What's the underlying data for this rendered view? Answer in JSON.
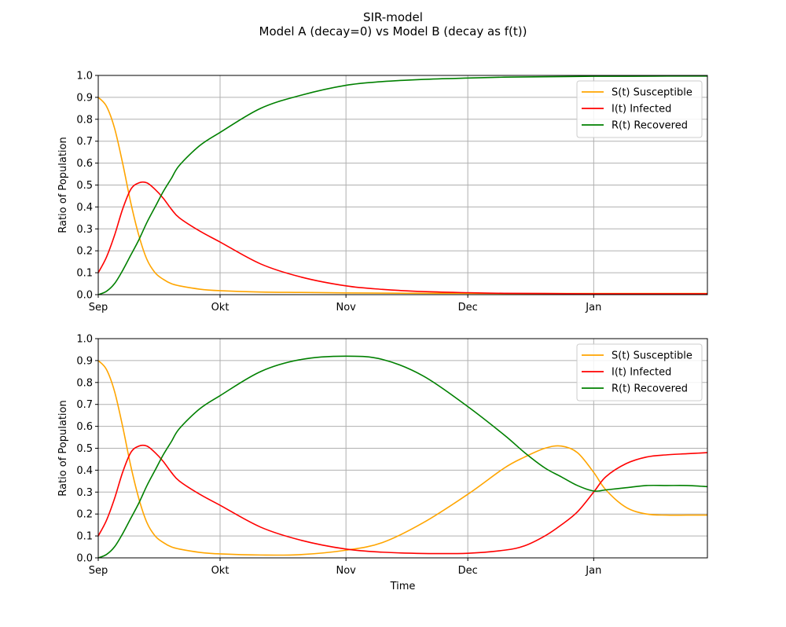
{
  "figure": {
    "title": "SIR-model",
    "subtitle": "Model A (decay=0) vs Model B (decay as f(t))"
  },
  "colors": {
    "susceptible": "#ffa500",
    "infected": "#ff0000",
    "recovered": "#008000",
    "grid": "#b0b0b0"
  },
  "chart_data": [
    {
      "type": "line",
      "title": "",
      "xlabel": "",
      "ylabel": "Ratio of Population",
      "x_unit": "days since Sep 1",
      "xlim": [
        0,
        150
      ],
      "ylim": [
        0,
        1.0
      ],
      "xticks": [
        {
          "label": "Sep",
          "value": 0
        },
        {
          "label": "Okt",
          "value": 30
        },
        {
          "label": "Nov",
          "value": 61
        },
        {
          "label": "Dec",
          "value": 91
        },
        {
          "label": "Jan",
          "value": 122
        }
      ],
      "yticks": [
        0.0,
        0.1,
        0.2,
        0.3,
        0.4,
        0.5,
        0.6,
        0.7,
        0.8,
        0.9,
        1.0
      ],
      "grid": true,
      "legend": "top-right",
      "series": [
        {
          "name": "S(t) Susceptible",
          "color": "#ffa500",
          "x": [
            0,
            2,
            4,
            6,
            8,
            10,
            12,
            14,
            16,
            18,
            20,
            25,
            30,
            40,
            50,
            61,
            70,
            80,
            91,
            100,
            110,
            122,
            130,
            140,
            150
          ],
          "y": [
            0.9,
            0.86,
            0.76,
            0.6,
            0.42,
            0.27,
            0.16,
            0.1,
            0.07,
            0.05,
            0.04,
            0.025,
            0.018,
            0.012,
            0.01,
            0.008,
            0.007,
            0.006,
            0.006,
            0.005,
            0.005,
            0.005,
            0.005,
            0.005,
            0.005
          ]
        },
        {
          "name": "I(t) Infected",
          "color": "#ff0000",
          "x": [
            0,
            2,
            4,
            6,
            8,
            10,
            12,
            14,
            16,
            18,
            20,
            25,
            30,
            40,
            50,
            61,
            70,
            80,
            91,
            100,
            110,
            122,
            130,
            140,
            150
          ],
          "y": [
            0.1,
            0.17,
            0.27,
            0.39,
            0.48,
            0.51,
            0.51,
            0.48,
            0.44,
            0.39,
            0.35,
            0.29,
            0.24,
            0.14,
            0.08,
            0.04,
            0.024,
            0.014,
            0.009,
            0.006,
            0.005,
            0.004,
            0.004,
            0.004,
            0.004
          ]
        },
        {
          "name": "R(t) Recovered",
          "color": "#008000",
          "x": [
            0,
            2,
            4,
            6,
            8,
            10,
            12,
            14,
            16,
            18,
            20,
            25,
            30,
            40,
            50,
            61,
            70,
            80,
            91,
            100,
            110,
            122,
            130,
            140,
            150
          ],
          "y": [
            0.0,
            0.015,
            0.05,
            0.11,
            0.18,
            0.25,
            0.33,
            0.4,
            0.47,
            0.53,
            0.59,
            0.68,
            0.74,
            0.85,
            0.91,
            0.955,
            0.972,
            0.982,
            0.988,
            0.992,
            0.994,
            0.996,
            0.996,
            0.997,
            0.997
          ]
        }
      ]
    },
    {
      "type": "line",
      "title": "",
      "xlabel": "Time",
      "ylabel": "Ratio of Population",
      "x_unit": "days since Sep 1",
      "xlim": [
        0,
        150
      ],
      "ylim": [
        0,
        1.0
      ],
      "xticks": [
        {
          "label": "Sep",
          "value": 0
        },
        {
          "label": "Okt",
          "value": 30
        },
        {
          "label": "Nov",
          "value": 61
        },
        {
          "label": "Dec",
          "value": 91
        },
        {
          "label": "Jan",
          "value": 122
        }
      ],
      "yticks": [
        0.0,
        0.1,
        0.2,
        0.3,
        0.4,
        0.5,
        0.6,
        0.7,
        0.8,
        0.9,
        1.0
      ],
      "grid": true,
      "legend": "top-right",
      "series": [
        {
          "name": "S(t) Susceptible",
          "color": "#ffa500",
          "x": [
            0,
            2,
            4,
            6,
            8,
            10,
            12,
            14,
            16,
            18,
            20,
            25,
            30,
            40,
            50,
            61,
            70,
            80,
            91,
            100,
            105,
            110,
            114,
            118,
            122,
            125,
            130,
            135,
            140,
            145,
            150
          ],
          "y": [
            0.9,
            0.86,
            0.76,
            0.6,
            0.42,
            0.27,
            0.16,
            0.1,
            0.07,
            0.05,
            0.04,
            0.025,
            0.018,
            0.013,
            0.015,
            0.035,
            0.07,
            0.16,
            0.29,
            0.41,
            0.46,
            0.5,
            0.51,
            0.48,
            0.39,
            0.31,
            0.23,
            0.2,
            0.195,
            0.195,
            0.195
          ]
        },
        {
          "name": "I(t) Infected",
          "color": "#ff0000",
          "x": [
            0,
            2,
            4,
            6,
            8,
            10,
            12,
            14,
            16,
            18,
            20,
            25,
            30,
            40,
            50,
            61,
            70,
            80,
            91,
            100,
            105,
            110,
            114,
            118,
            122,
            125,
            130,
            135,
            140,
            145,
            150
          ],
          "y": [
            0.1,
            0.17,
            0.27,
            0.39,
            0.48,
            0.51,
            0.51,
            0.48,
            0.44,
            0.39,
            0.35,
            0.29,
            0.24,
            0.14,
            0.08,
            0.04,
            0.026,
            0.02,
            0.021,
            0.035,
            0.055,
            0.1,
            0.15,
            0.21,
            0.3,
            0.37,
            0.43,
            0.46,
            0.47,
            0.475,
            0.48
          ]
        },
        {
          "name": "R(t) Recovered",
          "color": "#008000",
          "x": [
            0,
            2,
            4,
            6,
            8,
            10,
            12,
            14,
            16,
            18,
            20,
            25,
            30,
            40,
            50,
            61,
            70,
            80,
            91,
            100,
            105,
            110,
            114,
            118,
            122,
            125,
            130,
            135,
            140,
            145,
            150
          ],
          "y": [
            0.0,
            0.015,
            0.05,
            0.11,
            0.18,
            0.25,
            0.33,
            0.4,
            0.47,
            0.53,
            0.59,
            0.68,
            0.74,
            0.85,
            0.905,
            0.92,
            0.905,
            0.83,
            0.69,
            0.56,
            0.48,
            0.41,
            0.37,
            0.33,
            0.305,
            0.31,
            0.32,
            0.33,
            0.33,
            0.33,
            0.325
          ]
        }
      ]
    }
  ]
}
